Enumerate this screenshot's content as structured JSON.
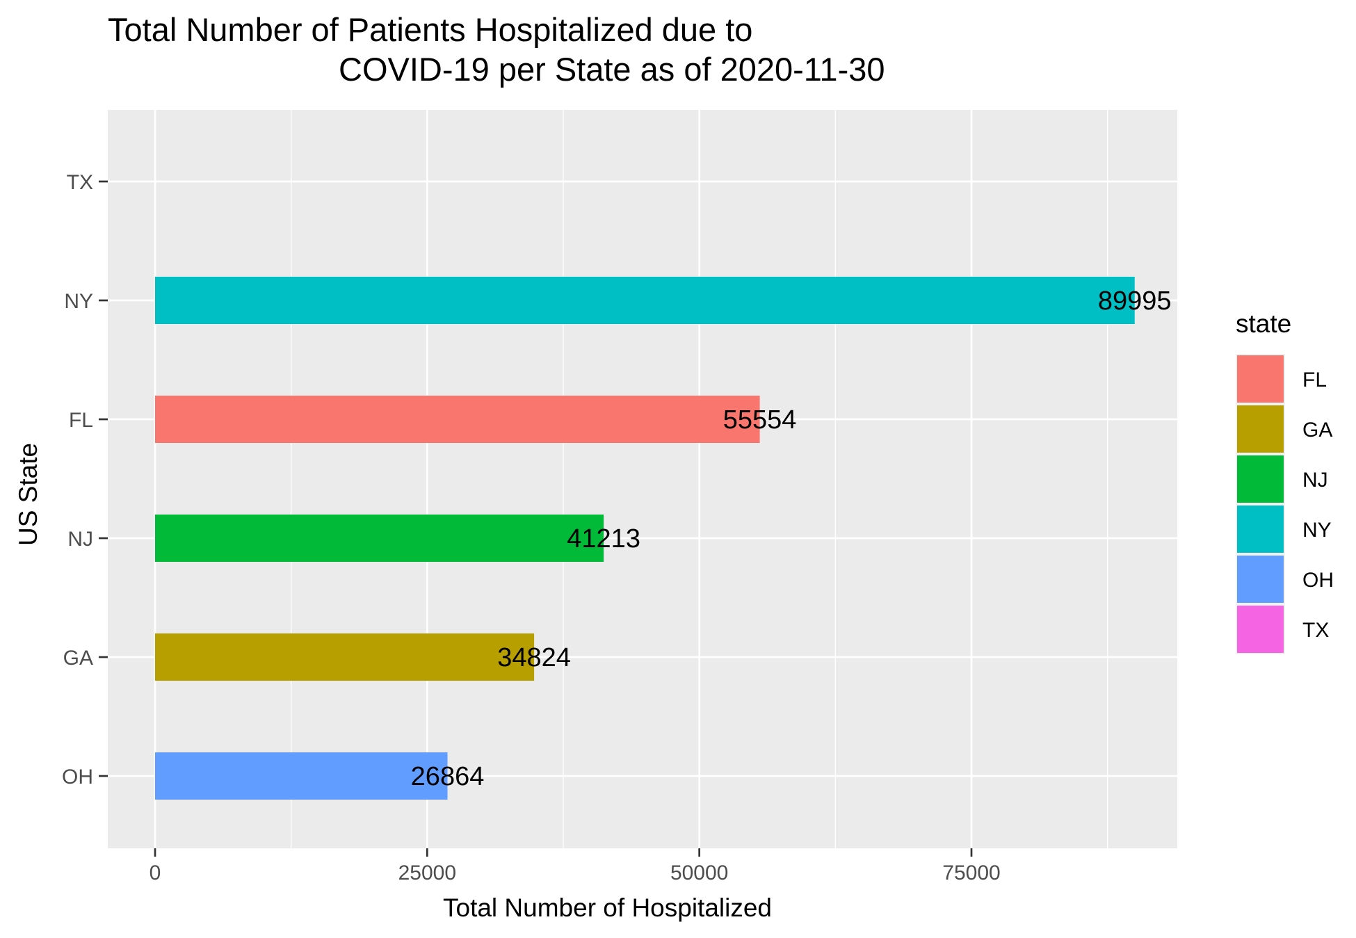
{
  "chart_data": {
    "type": "bar",
    "orientation": "horizontal",
    "title_line1": "Total Number of Patients Hospitalized due to",
    "title_line2": "COVID-19 per State as of 2020-11-30",
    "xlabel": "Total Number of Hospitalized",
    "ylabel": "US State",
    "categories": [
      "OH",
      "GA",
      "NJ",
      "FL",
      "NY",
      "TX"
    ],
    "values": [
      26864,
      34824,
      41213,
      55554,
      89995,
      null
    ],
    "data_labels": [
      "26864",
      "34824",
      "41213",
      "55554",
      "89995",
      ""
    ],
    "colors": {
      "FL": "#F8766D",
      "GA": "#B79F00",
      "NJ": "#00BA38",
      "NY": "#00BFC4",
      "OH": "#619CFF",
      "TX": "#F564E3"
    },
    "xticks": [
      0,
      25000,
      50000,
      75000
    ],
    "xtick_labels": [
      "0",
      "25000",
      "50000",
      "75000"
    ],
    "xlim": [
      -4500,
      94500
    ],
    "grid": true,
    "panel_background": "#EBEBEB",
    "legend": {
      "title": "state",
      "position": "right",
      "items": [
        "FL",
        "GA",
        "NJ",
        "NY",
        "OH",
        "TX"
      ]
    }
  }
}
